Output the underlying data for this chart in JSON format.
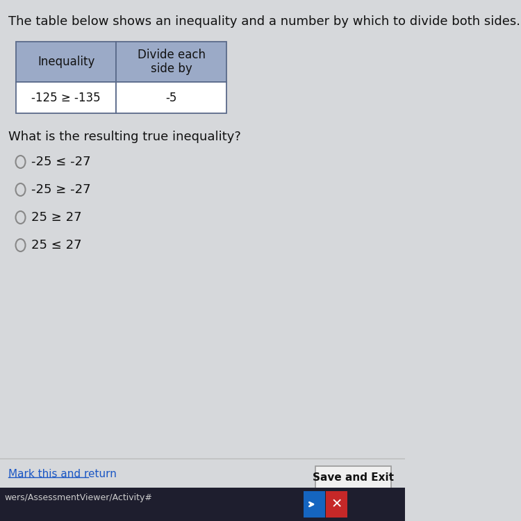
{
  "title_text": "The table below shows an inequality and a number by which to divide both sides.",
  "title_fontsize": 13,
  "table_header_col1": "Inequality",
  "table_header_col2": "Divide each\nside by",
  "table_data_col1": "-125 ≥ -135",
  "table_data_col2": "-5",
  "table_header_bg": "#9baac7",
  "table_border_color": "#5a6a8a",
  "question_text": "What is the resulting true inequality?",
  "question_fontsize": 13,
  "choices": [
    "-25 ≤ -27",
    "-25 ≥ -27",
    "25 ≥ 27",
    "25 ≤ 27"
  ],
  "choice_fontsize": 13,
  "bg_color": "#d6d8db",
  "link_text": "Mark this and return",
  "link_color": "#1a56c4",
  "button_text": "Save and Exit",
  "taskbar_color": "#1e1e2e",
  "url_text": "wers/AssessmentViewer/Activity#"
}
